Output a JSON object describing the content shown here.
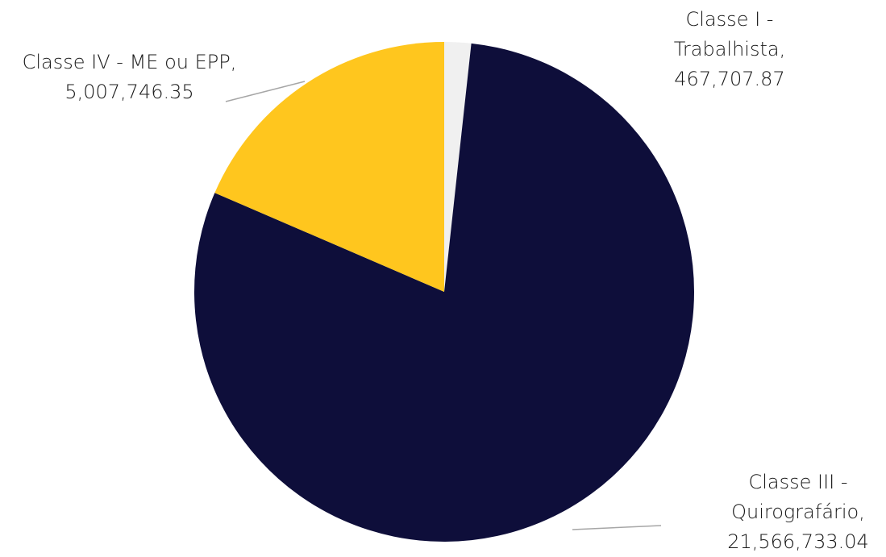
{
  "chart_data": {
    "type": "pie",
    "categories": [
      "Classe I - Trabalhista",
      "Classe III - Quirografário",
      "Classe IV - ME ou EPP"
    ],
    "values": [
      467707.87,
      21566733.04,
      5007746.35
    ],
    "value_labels": [
      "467,707.87",
      "21,566,733.04",
      "5,007,746.35"
    ],
    "colors": [
      "#f0f0f0",
      "#0e0e3a",
      "#ffc61e"
    ]
  }
}
